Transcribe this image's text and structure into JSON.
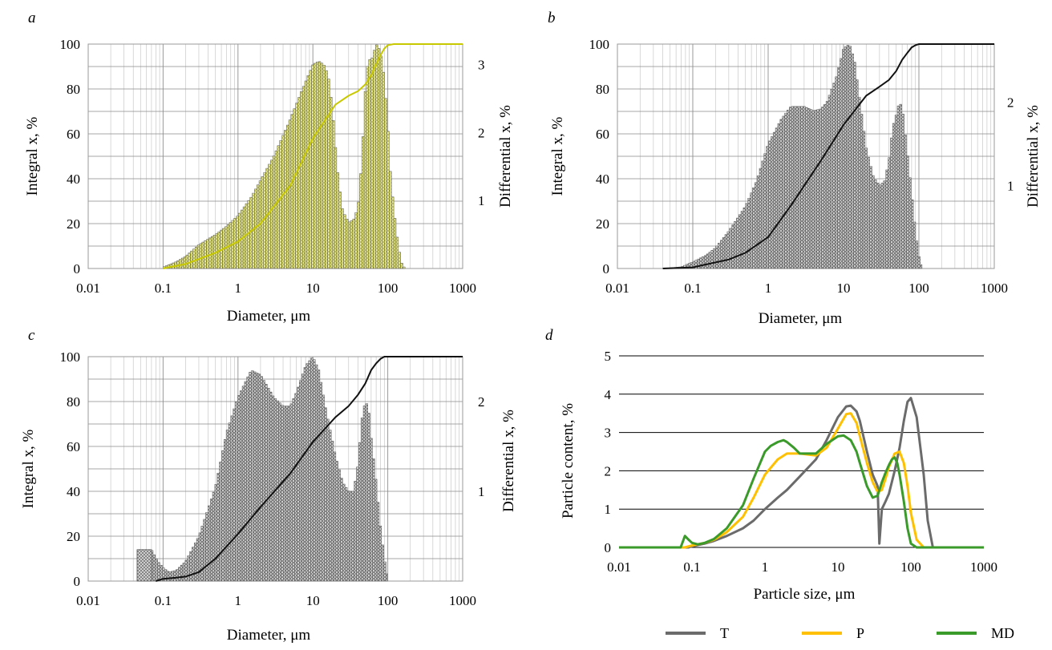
{
  "chart_data": [
    {
      "panel_label": "a",
      "type": "bar",
      "secondary_type": "line",
      "x_scale": "log",
      "xlim": [
        0.01,
        1000
      ],
      "x_ticks": [
        "0.01",
        "0.1",
        "1",
        "10",
        "100",
        "1000"
      ],
      "xlabel": "Diameter, μm",
      "ylabel_left": "Integral x,  %",
      "ylim_left": [
        0,
        100
      ],
      "y_ticks_left": [
        "0",
        "20",
        "40",
        "60",
        "80",
        "100"
      ],
      "ylabel_right": "Differential x,  %",
      "ylim_right": [
        0,
        3.3
      ],
      "y_ticks_right": [
        "1",
        "2",
        "3"
      ],
      "grid": true,
      "bar_color": "#d8d86a",
      "line_color": "#c8c800",
      "differential": {
        "x": [
          0.1,
          0.15,
          0.2,
          0.3,
          0.5,
          0.7,
          1,
          1.5,
          2,
          3,
          5,
          7,
          10,
          12,
          14,
          16,
          18,
          20,
          22,
          25,
          30,
          35,
          40,
          45,
          50,
          55,
          60,
          70,
          80,
          90,
          100,
          110,
          130,
          150,
          170
        ],
        "values": [
          0.02,
          0.1,
          0.18,
          0.35,
          0.5,
          0.62,
          0.78,
          1.05,
          1.3,
          1.65,
          2.2,
          2.6,
          3.0,
          3.05,
          3.0,
          2.85,
          2.4,
          1.8,
          1.3,
          0.85,
          0.68,
          0.72,
          0.9,
          1.6,
          2.6,
          3.1,
          3.05,
          3.3,
          3.2,
          2.8,
          2.1,
          1.3,
          0.55,
          0.1,
          0.0
        ]
      },
      "integral": {
        "x": [
          0.1,
          0.2,
          0.5,
          1,
          2,
          5,
          10,
          20,
          30,
          40,
          50,
          60,
          70,
          80,
          90,
          100,
          120,
          150,
          200,
          1000
        ],
        "values": [
          0,
          2,
          7,
          12,
          20,
          37,
          58,
          73,
          77,
          79,
          82,
          86,
          91,
          95,
          98,
          99.5,
          100,
          100,
          100,
          100
        ]
      }
    },
    {
      "panel_label": "b",
      "type": "bar",
      "secondary_type": "line",
      "x_scale": "log",
      "xlim": [
        0.01,
        1000
      ],
      "x_ticks": [
        "0.01",
        "0.1",
        "1",
        "10",
        "100",
        "1000"
      ],
      "xlabel": "Diameter, μm",
      "ylabel_left": "Integral x,  %",
      "ylim_left": [
        0,
        100
      ],
      "y_ticks_left": [
        "0",
        "20",
        "40",
        "60",
        "80",
        "100"
      ],
      "ylabel_right": "Differential x,  %",
      "ylim_right": [
        0,
        2.7
      ],
      "y_ticks_right": [
        "1",
        "2"
      ],
      "grid": true,
      "bar_color": "#999999",
      "line_color": "#111111",
      "differential": {
        "x": [
          0.04,
          0.07,
          0.1,
          0.15,
          0.2,
          0.3,
          0.5,
          0.7,
          1,
          1.5,
          2,
          3,
          4,
          5,
          6,
          8,
          10,
          12,
          14,
          16,
          20,
          25,
          30,
          35,
          40,
          45,
          50,
          55,
          60,
          70,
          80,
          90,
          100,
          110
        ],
        "values": [
          0.0,
          0.02,
          0.08,
          0.16,
          0.25,
          0.45,
          0.75,
          1.05,
          1.5,
          1.8,
          1.95,
          1.95,
          1.9,
          1.92,
          2.0,
          2.3,
          2.65,
          2.7,
          2.5,
          2.1,
          1.45,
          1.1,
          1.0,
          1.05,
          1.3,
          1.7,
          1.85,
          2.0,
          1.95,
          1.4,
          0.9,
          0.45,
          0.15,
          0.02
        ]
      },
      "integral": {
        "x": [
          0.04,
          0.1,
          0.3,
          0.5,
          1,
          2,
          5,
          10,
          20,
          30,
          40,
          50,
          60,
          70,
          80,
          90,
          100,
          1000
        ],
        "values": [
          0,
          0.5,
          4,
          7,
          14,
          28,
          48,
          64,
          77,
          81,
          84,
          88,
          93,
          96,
          98.5,
          99.5,
          100,
          100
        ]
      }
    },
    {
      "panel_label": "c",
      "type": "bar",
      "secondary_type": "line",
      "x_scale": "log",
      "xlim": [
        0.01,
        1000
      ],
      "x_ticks": [
        "0.01",
        "0.1",
        "1",
        "10",
        "100",
        "1000"
      ],
      "xlabel": "Diameter, μm",
      "ylabel_left": "Integral x,  %",
      "ylim_left": [
        0,
        100
      ],
      "y_ticks_left": [
        "0",
        "20",
        "40",
        "60",
        "80",
        "100"
      ],
      "ylabel_right": "Differential x,  %",
      "ylim_right": [
        0,
        2.5
      ],
      "y_ticks_right": [
        "1",
        "2"
      ],
      "grid": true,
      "bar_color": "#999999",
      "line_color": "#111111",
      "differential": {
        "x": [
          0.045,
          0.07,
          0.085,
          0.1,
          0.12,
          0.15,
          0.2,
          0.3,
          0.5,
          0.7,
          1,
          1.5,
          2,
          3,
          4,
          5,
          6,
          8,
          10,
          12,
          15,
          20,
          25,
          30,
          35,
          40,
          45,
          50,
          55,
          60,
          70,
          80,
          90,
          100
        ],
        "values": [
          0.35,
          0.35,
          0.22,
          0.15,
          0.1,
          0.12,
          0.22,
          0.5,
          1.05,
          1.65,
          2.05,
          2.35,
          2.3,
          2.05,
          1.95,
          1.95,
          2.1,
          2.4,
          2.5,
          2.35,
          1.9,
          1.4,
          1.1,
          1.0,
          1.0,
          1.3,
          1.8,
          2.0,
          1.95,
          1.6,
          1.1,
          0.6,
          0.25,
          0.05
        ]
      },
      "integral": {
        "x": [
          0.08,
          0.1,
          0.15,
          0.2,
          0.3,
          0.5,
          1,
          2,
          5,
          10,
          20,
          30,
          40,
          50,
          60,
          70,
          80,
          90,
          100,
          1000
        ],
        "values": [
          0,
          1,
          1.5,
          2,
          4,
          10,
          21,
          33,
          48,
          62,
          73,
          78,
          83,
          88,
          94,
          97,
          99,
          100,
          100,
          100
        ]
      }
    },
    {
      "panel_label": "d",
      "type": "line",
      "x_scale": "log",
      "xlim": [
        0.01,
        1000
      ],
      "x_ticks": [
        "0.01",
        "0.1",
        "1",
        "10",
        "100",
        "1000"
      ],
      "xlabel": "Particle size, μm",
      "ylabel": "Particle content,  %",
      "ylim": [
        0,
        5
      ],
      "y_ticks": [
        "0",
        "1",
        "2",
        "3",
        "4",
        "5"
      ],
      "grid": true,
      "legend_position": "bottom",
      "series": [
        {
          "name": "T",
          "color": "#6b6b6b",
          "x": [
            0.01,
            0.09,
            0.1,
            0.15,
            0.2,
            0.3,
            0.5,
            0.7,
            1,
            1.5,
            2,
            3,
            5,
            7,
            10,
            13,
            15,
            18,
            20,
            25,
            30,
            35,
            37,
            40,
            45,
            50,
            60,
            70,
            80,
            90,
            100,
            120,
            150,
            170,
            200,
            1000
          ],
          "values": [
            0,
            0,
            0.03,
            0.1,
            0.17,
            0.3,
            0.5,
            0.7,
            1.0,
            1.3,
            1.5,
            1.85,
            2.3,
            2.8,
            3.4,
            3.68,
            3.7,
            3.55,
            3.3,
            2.5,
            1.9,
            1.6,
            0.1,
            1.0,
            1.2,
            1.4,
            2.0,
            2.6,
            3.3,
            3.8,
            3.9,
            3.4,
            1.9,
            0.7,
            0,
            0
          ]
        },
        {
          "name": "P",
          "color": "#ffc000",
          "x": [
            0.01,
            0.08,
            0.1,
            0.15,
            0.2,
            0.3,
            0.5,
            0.7,
            1,
            1.5,
            2,
            3,
            5,
            7,
            10,
            13,
            15,
            18,
            20,
            25,
            30,
            35,
            40,
            45,
            50,
            60,
            70,
            80,
            90,
            100,
            120,
            150,
            1000
          ],
          "values": [
            0,
            0,
            0.05,
            0.12,
            0.2,
            0.4,
            0.8,
            1.3,
            1.9,
            2.3,
            2.45,
            2.45,
            2.4,
            2.6,
            3.1,
            3.48,
            3.5,
            3.25,
            2.9,
            2.2,
            1.7,
            1.45,
            1.5,
            1.8,
            2.1,
            2.45,
            2.5,
            2.2,
            1.6,
            0.9,
            0.2,
            0,
            0
          ]
        },
        {
          "name": "MD",
          "color": "#3a9a2a",
          "x": [
            0.01,
            0.07,
            0.08,
            0.09,
            0.1,
            0.12,
            0.15,
            0.2,
            0.3,
            0.5,
            0.7,
            1,
            1.2,
            1.5,
            1.8,
            2,
            2.5,
            3,
            5,
            7,
            10,
            12,
            15,
            18,
            20,
            25,
            30,
            35,
            40,
            45,
            50,
            55,
            60,
            65,
            70,
            80,
            90,
            100,
            120,
            1000
          ],
          "values": [
            0,
            0,
            0.3,
            0.2,
            0.12,
            0.08,
            0.12,
            0.22,
            0.5,
            1.1,
            1.8,
            2.5,
            2.65,
            2.75,
            2.8,
            2.75,
            2.6,
            2.45,
            2.45,
            2.7,
            2.9,
            2.92,
            2.8,
            2.5,
            2.2,
            1.6,
            1.3,
            1.35,
            1.7,
            1.95,
            2.15,
            2.3,
            2.35,
            2.2,
            1.9,
            1.2,
            0.5,
            0.1,
            0,
            0
          ]
        }
      ]
    }
  ]
}
